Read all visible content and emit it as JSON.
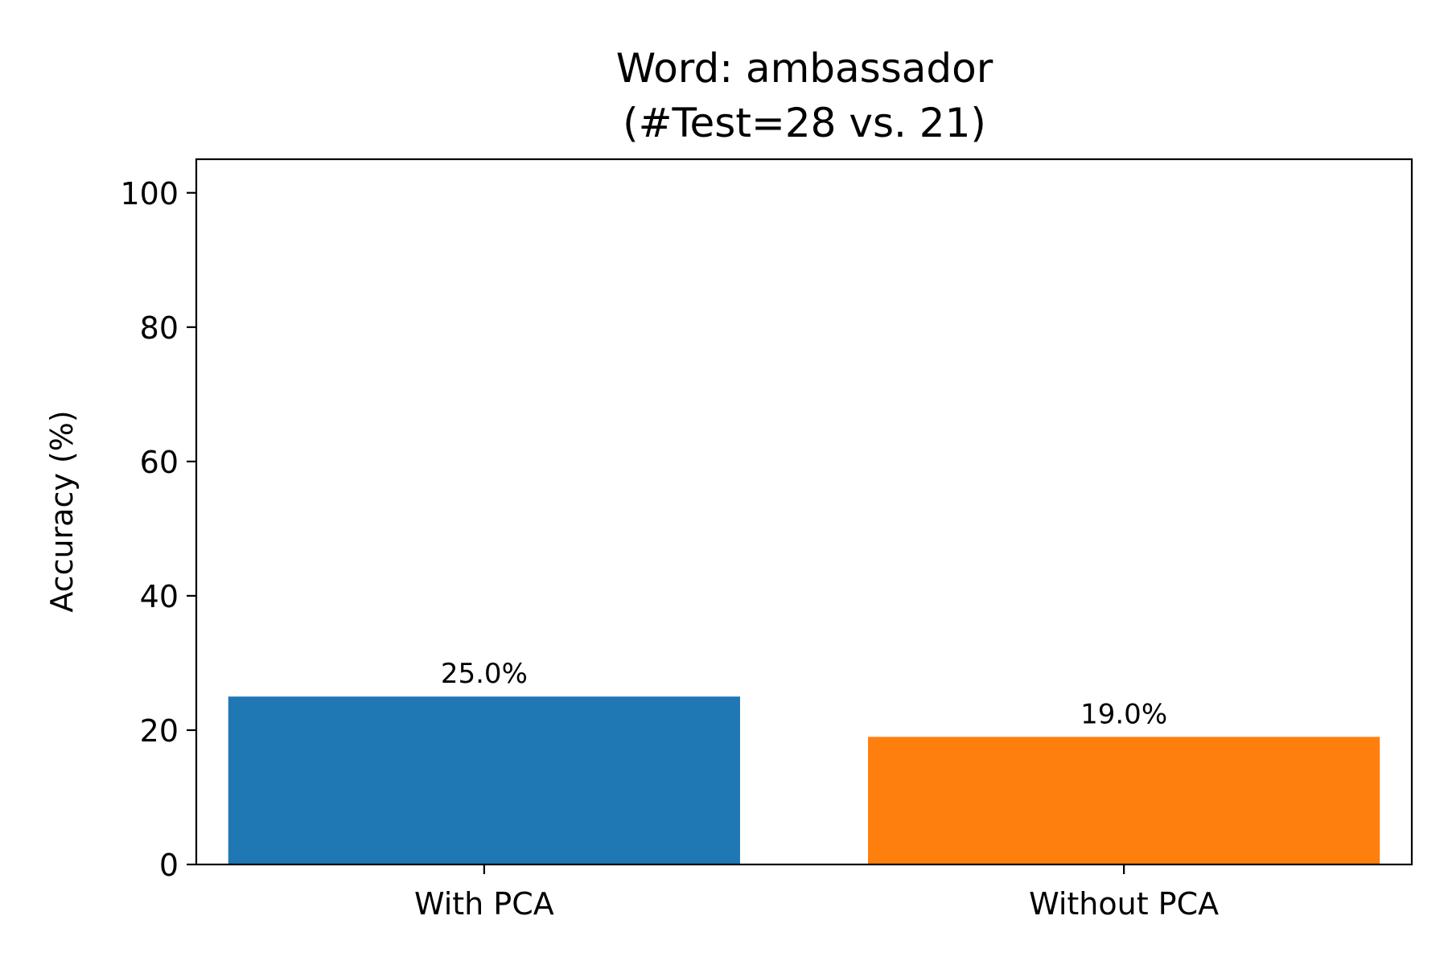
{
  "chart_data": {
    "type": "bar",
    "title": [
      "Word: ambassador",
      "(#Test=28 vs. 21)"
    ],
    "xlabel": "",
    "ylabel": "Accuracy (%)",
    "categories": [
      "With PCA",
      "Without PCA"
    ],
    "values": [
      25.0,
      19.0
    ],
    "value_labels": [
      "25.0%",
      "19.0%"
    ],
    "colors": [
      "#1f77b4",
      "#ff7f0e"
    ],
    "ylim": [
      0,
      105
    ],
    "yticks": [
      0,
      20,
      40,
      60,
      80,
      100
    ],
    "grid": false,
    "legend": "none"
  }
}
